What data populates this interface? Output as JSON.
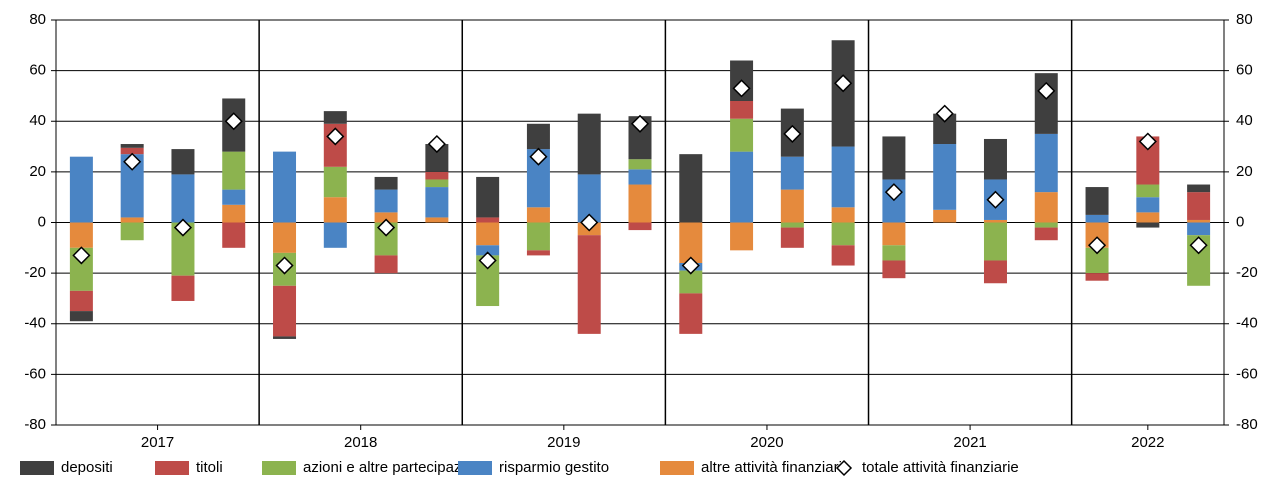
{
  "chart_data": {
    "type": "bar",
    "stacked": true,
    "categories": [
      null,
      null,
      null,
      null,
      null,
      null,
      null,
      null,
      null,
      null,
      null,
      null,
      null,
      null,
      null,
      null,
      null,
      null,
      null,
      null,
      null,
      null,
      null
    ],
    "groups": [
      "2017",
      "2018",
      "2019",
      "2020",
      "2021",
      "2022"
    ],
    "group_sizes": [
      4,
      4,
      4,
      4,
      4,
      3
    ],
    "series": [
      {
        "name": "depositi",
        "color": "#3f3f3f",
        "values": [
          -4,
          1.5,
          10,
          21,
          -1,
          5,
          5,
          11,
          16,
          10,
          24,
          17,
          27,
          16,
          19,
          42,
          17,
          12,
          16,
          24,
          11,
          -2,
          3
        ]
      },
      {
        "name": "titoli",
        "color": "#be4b48",
        "values": [
          -8,
          2.5,
          -10,
          -10,
          -20,
          17,
          -7,
          3,
          2,
          -2,
          -39,
          -3,
          -16,
          7,
          -8,
          -8,
          -7,
          0,
          -9,
          -5,
          -3,
          19,
          11
        ]
      },
      {
        "name": "azioni e altre partecipazioni",
        "color": "#8cb34f",
        "values": [
          -17,
          -7,
          -21,
          15,
          -13,
          12,
          -13,
          3,
          -20,
          -11,
          0,
          4,
          -9,
          13,
          -2,
          -9,
          -6,
          0,
          -15,
          -2,
          -10,
          5,
          -20
        ]
      },
      {
        "name": "risparmio gestito",
        "color": "#4a84c4",
        "values": [
          26,
          25,
          19,
          6,
          28,
          -10,
          9,
          12,
          -4,
          23,
          19,
          6,
          -3,
          28,
          13,
          24,
          17,
          26,
          16,
          23,
          3,
          6,
          -5
        ]
      },
      {
        "name": "altre attività finanziarie",
        "color": "#e58a3d",
        "values": [
          -10,
          2,
          0,
          7,
          -12,
          10,
          4,
          2,
          -9,
          6,
          -5,
          15,
          -16,
          -11,
          13,
          6,
          -9,
          5,
          1,
          12,
          -10,
          4,
          1
        ]
      }
    ],
    "total": {
      "name": "totale attività finanziarie",
      "values": [
        -13,
        24,
        -2,
        40,
        -17,
        34,
        -2,
        31,
        -15,
        26,
        0,
        39,
        -17,
        53,
        35,
        55,
        12,
        43,
        9,
        52,
        -9,
        32,
        -9
      ]
    },
    "ylim": [
      -80,
      80
    ],
    "yticks": [
      -80,
      -60,
      -40,
      -20,
      0,
      20,
      40,
      60,
      80
    ],
    "grid": true
  }
}
